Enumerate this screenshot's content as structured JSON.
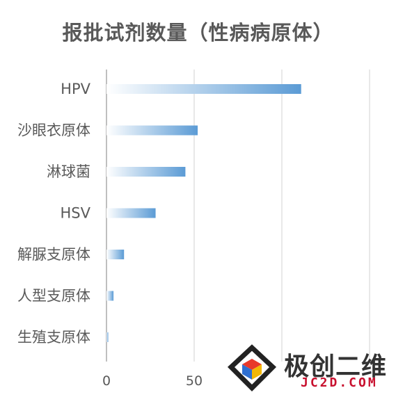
{
  "chart_data": {
    "type": "bar",
    "orientation": "horizontal",
    "title": "报批试剂数量（性病病原体）",
    "categories": [
      "HPV",
      "沙眼衣原体",
      "淋球菌",
      "HSV",
      "解脲支原体",
      "人型支原体",
      "生殖支原体"
    ],
    "values": [
      111,
      52,
      45,
      28,
      10,
      4,
      1
    ],
    "xlim": [
      0,
      150
    ],
    "xticks": [
      "0",
      "50"
    ],
    "grid": true,
    "colors": {
      "bar_start": "#ffffff",
      "bar_end": "#5b9bd5",
      "grid": "#d9d9d9",
      "text": "#595959"
    }
  },
  "watermark": {
    "brand": "极创二维",
    "domain": "JC2D.COM"
  }
}
